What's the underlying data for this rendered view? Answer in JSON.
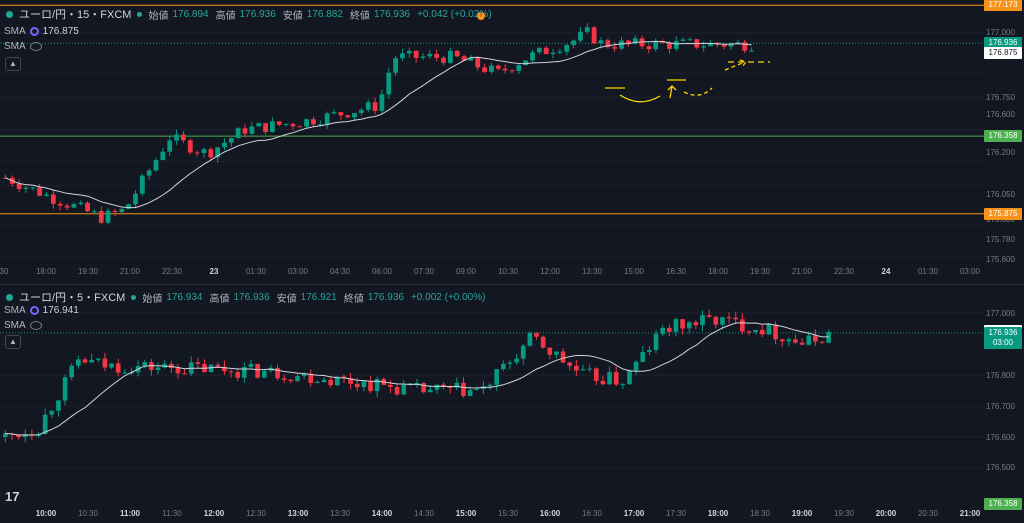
{
  "top_chart": {
    "symbol": "ユーロ/円・15・FXCM",
    "ohlc": [
      {
        "label": "始値",
        "value": "176.894"
      },
      {
        "label": "高値",
        "value": "176.936"
      },
      {
        "label": "安値",
        "value": "176.882"
      },
      {
        "label": "終値",
        "value": "176.936"
      }
    ],
    "change": "+0.042 (+0.02%)",
    "sma_label": "SMA",
    "sma_value": "176.875",
    "sma2_label": "SMA",
    "price_ticks": [
      "177.000",
      "176.750",
      "176.600",
      "176.400",
      "176.200",
      "176.050",
      "175.800",
      "175.780",
      "175.600"
    ],
    "badges": [
      {
        "text": "177.173",
        "color": "#f7931a",
        "value": 177.173
      },
      {
        "text": "176.936",
        "sub": "08:00",
        "color": "#089981",
        "value": 176.936
      },
      {
        "text": "176.875",
        "color": "#ffffff",
        "value": 176.875
      },
      {
        "text": "176.358",
        "color": "#4caf50",
        "value": 176.358
      },
      {
        "text": "175.875",
        "color": "#f7931a",
        "value": 175.875
      }
    ],
    "time_ticks": [
      "30",
      "18:00",
      "19:30",
      "21:00",
      "22:30",
      "23",
      "01:30",
      "03:00",
      "04:30",
      "06:00",
      "07:30",
      "09:00",
      "10:30",
      "12:00",
      "13:30",
      "15:00",
      "16:30",
      "18:00",
      "19:30",
      "21:00",
      "22:30",
      "24",
      "01:30",
      "03:00"
    ],
    "bold_ticks": [
      "23",
      "24"
    ],
    "flag_glyph": "!"
  },
  "bottom_chart": {
    "symbol": "ユーロ/円・5・FXCM",
    "ohlc": [
      {
        "label": "始値",
        "value": "176.934"
      },
      {
        "label": "高値",
        "value": "176.936"
      },
      {
        "label": "安値",
        "value": "176.921"
      },
      {
        "label": "終値",
        "value": "176.936"
      }
    ],
    "change": "+0.002 (+0.00%)",
    "sma_label": "SMA",
    "sma_value": "176.941",
    "sma2_label": "SMA",
    "price_ticks": [
      "177.000",
      "176.900",
      "176.800",
      "176.700",
      "176.600",
      "176.500"
    ],
    "badges": [
      {
        "text": "176.941",
        "color": "#ffffff",
        "value": 176.941
      },
      {
        "text": "176.936",
        "sub": "03:00",
        "color": "#089981",
        "value": 176.936
      },
      {
        "text": "176.358",
        "color": "#4caf50",
        "value": 176.358
      }
    ],
    "time_ticks": [
      "10:00",
      "10:30",
      "11:00",
      "11:30",
      "12:00",
      "12:30",
      "13:00",
      "13:30",
      "14:00",
      "14:30",
      "15:00",
      "15:30",
      "16:00",
      "16:30",
      "17:00",
      "17:30",
      "18:00",
      "18:30",
      "19:00",
      "19:30",
      "20:00",
      "20:30",
      "21:00"
    ],
    "bold_ticks": [
      "10:00",
      "11:00",
      "12:00",
      "13:00",
      "14:00",
      "15:00",
      "16:00",
      "17:00",
      "18:00",
      "19:00",
      "20:00",
      "21:00"
    ]
  },
  "logo_text": "17",
  "colors": {
    "up": "#089981",
    "down": "#f23645",
    "sma": "#d1d4dc",
    "orange_line": "#f7931a",
    "green_line": "#4caf50",
    "drawing": "#ffd600"
  }
}
